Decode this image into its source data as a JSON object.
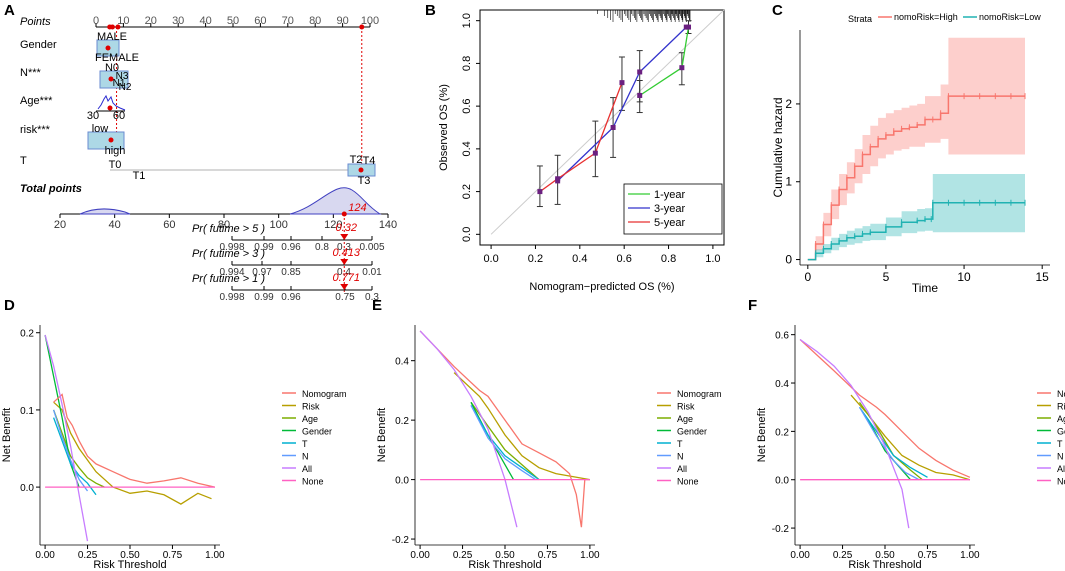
{
  "colors": {
    "red": "#f8766d",
    "green": "#7cae00",
    "teal": "#00bfc4",
    "purple": "#c77cff",
    "magenta": "#ff61c3",
    "cyan": "#00b0d0",
    "blue": "#2020c0",
    "dblue": "#3333cc",
    "lred": "#e83030",
    "lgreen": "#33cc33",
    "hazHigh": "#f8766d",
    "hazLow": "#20b2b2",
    "box": "#add8e6",
    "boxStroke": "#6a8bd0",
    "dot": "#e00000"
  },
  "chart_data": [
    {
      "panel": "A",
      "type": "nomogram",
      "rows": [
        {
          "label": "Points",
          "italic": true
        },
        {
          "label": "Gender",
          "levels": [
            "MALE",
            "FEMALE"
          ]
        },
        {
          "label": "N***",
          "levels": [
            "N0",
            "N3",
            "N1",
            "N2"
          ]
        },
        {
          "label": "Age***",
          "ticks": [
            "30",
            "60"
          ]
        },
        {
          "label": "risk***",
          "levels": [
            "low",
            "high"
          ]
        },
        {
          "label": "T",
          "levels": [
            "T0",
            "T1",
            "T2",
            "T4",
            "T3"
          ]
        },
        {
          "label": "Total points",
          "bold": true,
          "italic": true
        }
      ],
      "points_ticks": [
        0,
        10,
        20,
        30,
        40,
        50,
        60,
        70,
        80,
        90,
        100
      ],
      "total_ticks": [
        20,
        40,
        60,
        80,
        100,
        120,
        140
      ],
      "total_value": "124",
      "prob_rows": [
        {
          "label": "Pr( futime > 5 )",
          "value": "0.32",
          "ticks": [
            "0.998",
            "0.99",
            "0.96",
            "0.8",
            "0.3",
            "0.005"
          ]
        },
        {
          "label": "Pr( futime > 3 )",
          "value": "0.413",
          "ticks": [
            "0.994",
            "0.97",
            "0.85",
            "0.4",
            "0.01"
          ]
        },
        {
          "label": "Pr( futime > 1 )",
          "value": "0.771",
          "ticks": [
            "0.998",
            "0.99",
            "0.96",
            "0.75",
            "0.3"
          ]
        }
      ]
    },
    {
      "panel": "B",
      "type": "line",
      "xlabel": "Nomogram−predicted OS (%)",
      "ylabel": "Observed OS (%)",
      "xlim": [
        0,
        1
      ],
      "ylim": [
        0,
        1
      ],
      "xticks": [
        "0.0",
        "0.2",
        "0.4",
        "0.6",
        "0.8",
        "1.0"
      ],
      "yticks": [
        "0.0",
        "0.2",
        "0.4",
        "0.6",
        "0.8",
        "1.0"
      ],
      "series": [
        {
          "name": "1-year",
          "x": [
            0.67,
            0.86,
            0.89
          ],
          "y": [
            0.65,
            0.78,
            0.97
          ]
        },
        {
          "name": "3-year",
          "x": [
            0.3,
            0.55,
            0.67,
            0.88
          ],
          "y": [
            0.25,
            0.5,
            0.76,
            0.97
          ]
        },
        {
          "name": "5-year",
          "x": [
            0.22,
            0.3,
            0.47,
            0.59
          ],
          "y": [
            0.2,
            0.26,
            0.38,
            0.71
          ]
        }
      ],
      "errorbars": [
        {
          "x": 0.22,
          "y": 0.2,
          "lo": 0.13,
          "hi": 0.32
        },
        {
          "x": 0.3,
          "y": 0.26,
          "lo": 0.14,
          "hi": 0.37
        },
        {
          "x": 0.47,
          "y": 0.38,
          "lo": 0.27,
          "hi": 0.53
        },
        {
          "x": 0.55,
          "y": 0.5,
          "lo": 0.36,
          "hi": 0.64
        },
        {
          "x": 0.59,
          "y": 0.71,
          "lo": 0.58,
          "hi": 0.83
        },
        {
          "x": 0.67,
          "y": 0.76,
          "lo": 0.62,
          "hi": 0.86
        },
        {
          "x": 0.67,
          "y": 0.65,
          "lo": 0.57,
          "hi": 0.72
        },
        {
          "x": 0.86,
          "y": 0.78,
          "lo": 0.7,
          "hi": 0.85
        },
        {
          "x": 0.89,
          "y": 0.97,
          "lo": 0.94,
          "hi": 1.0
        }
      ]
    },
    {
      "panel": "C",
      "type": "line",
      "legend_title": "Strata",
      "xlabel": "Time",
      "ylabel": "Cumulative hazard",
      "xlim": [
        0,
        15
      ],
      "ylim": [
        0,
        2.8
      ],
      "xticks": [
        "0",
        "5",
        "10",
        "15"
      ],
      "yticks": [
        "0",
        "1",
        "2"
      ],
      "series": [
        {
          "name": "nomoRisk=High",
          "x": [
            0,
            0.5,
            1,
            1.5,
            2,
            2.5,
            3,
            3.5,
            4,
            4.5,
            5,
            5.5,
            6,
            6.5,
            7,
            7.5,
            8,
            8.5,
            9,
            10,
            11,
            12,
            13,
            13.9
          ],
          "y": [
            0,
            0.2,
            0.45,
            0.7,
            0.9,
            1.05,
            1.2,
            1.35,
            1.45,
            1.55,
            1.6,
            1.65,
            1.68,
            1.7,
            1.73,
            1.8,
            1.8,
            1.88,
            2.1,
            2.1,
            2.1,
            2.1,
            2.1,
            2.1
          ],
          "lo": [
            0,
            0.12,
            0.3,
            0.52,
            0.7,
            0.85,
            0.98,
            1.1,
            1.2,
            1.3,
            1.35,
            1.4,
            1.42,
            1.45,
            1.45,
            1.5,
            1.5,
            1.55,
            1.35,
            1.35,
            1.35,
            1.35,
            1.35,
            1.35
          ],
          "hi": [
            0,
            0.3,
            0.6,
            0.9,
            1.1,
            1.25,
            1.42,
            1.6,
            1.72,
            1.82,
            1.88,
            1.92,
            1.95,
            1.98,
            2.0,
            2.1,
            2.1,
            2.25,
            2.85,
            2.85,
            2.85,
            2.85,
            2.85,
            2.85
          ]
        },
        {
          "name": "nomoRisk=Low",
          "x": [
            0,
            0.5,
            1,
            1.5,
            2,
            2.5,
            3,
            3.5,
            4,
            5,
            6,
            7,
            7.5,
            7.9,
            8,
            9,
            10,
            11,
            12,
            13,
            13.9
          ],
          "y": [
            0,
            0.08,
            0.14,
            0.2,
            0.24,
            0.28,
            0.3,
            0.33,
            0.35,
            0.42,
            0.48,
            0.5,
            0.52,
            0.52,
            0.73,
            0.73,
            0.73,
            0.73,
            0.73,
            0.73,
            0.73
          ],
          "lo": [
            0,
            0.03,
            0.08,
            0.12,
            0.16,
            0.19,
            0.21,
            0.24,
            0.25,
            0.3,
            0.34,
            0.36,
            0.37,
            0.37,
            0.35,
            0.35,
            0.35,
            0.35,
            0.35,
            0.35,
            0.35
          ],
          "hi": [
            0,
            0.13,
            0.2,
            0.28,
            0.33,
            0.37,
            0.4,
            0.43,
            0.46,
            0.54,
            0.62,
            0.65,
            0.66,
            0.66,
            1.1,
            1.1,
            1.1,
            1.1,
            1.1,
            1.1,
            1.1
          ]
        }
      ]
    },
    {
      "panel": "D",
      "type": "line",
      "xlabel": "Risk Threshold",
      "ylabel": "Net Benefit",
      "xlim": [
        0,
        1
      ],
      "ylim": [
        -0.075,
        0.21
      ],
      "xticks": [
        "0.00",
        "0.25",
        "0.50",
        "0.75",
        "1.00"
      ],
      "yticks": [
        "0.0",
        "0.1",
        "0.2"
      ],
      "legend": [
        "Nomogram",
        "Risk",
        "Age",
        "Gender",
        "T",
        "N",
        "All",
        "None"
      ],
      "series": [
        {
          "name": "All",
          "x": [
            0,
            0.05,
            0.1,
            0.15,
            0.2,
            0.25
          ],
          "y": [
            0.197,
            0.157,
            0.107,
            0.053,
            -0.01,
            -0.07
          ]
        },
        {
          "name": "None",
          "x": [
            0,
            1
          ],
          "y": [
            0,
            0
          ]
        },
        {
          "name": "Nomogram",
          "x": [
            0.05,
            0.1,
            0.13,
            0.16,
            0.2,
            0.25,
            0.3,
            0.4,
            0.5,
            0.6,
            0.7,
            0.8,
            0.9,
            1.0
          ],
          "y": [
            0.11,
            0.12,
            0.09,
            0.08,
            0.06,
            0.04,
            0.03,
            0.02,
            0.01,
            0.005,
            0.008,
            0.012,
            0.005,
            0
          ]
        },
        {
          "name": "Risk",
          "x": [
            0.05,
            0.1,
            0.15,
            0.2,
            0.3,
            0.4,
            0.5,
            0.6,
            0.7,
            0.8,
            0.9,
            0.98
          ],
          "y": [
            0.11,
            0.1,
            0.07,
            0.05,
            0.02,
            0.0,
            -0.008,
            -0.005,
            -0.01,
            -0.022,
            -0.008,
            -0.015
          ]
        },
        {
          "name": "Age",
          "x": [
            0.05,
            0.1,
            0.15,
            0.2,
            0.25,
            0.3,
            0.35
          ],
          "y": [
            0.1,
            0.07,
            0.04,
            0.025,
            0.012,
            0.005,
            0
          ]
        },
        {
          "name": "Gender",
          "x": [
            0,
            0.1,
            0.15,
            0.2
          ],
          "y": [
            0.197,
            0.09,
            0.03,
            0
          ]
        },
        {
          "name": "T",
          "x": [
            0.05,
            0.1,
            0.15,
            0.2,
            0.25,
            0.3
          ],
          "y": [
            0.09,
            0.06,
            0.03,
            0.015,
            0.005,
            -0.01
          ]
        },
        {
          "name": "N",
          "x": [
            0.05,
            0.1,
            0.15,
            0.2,
            0.25
          ],
          "y": [
            0.1,
            0.065,
            0.035,
            0.01,
            -0.005
          ]
        }
      ]
    },
    {
      "panel": "E",
      "type": "line",
      "xlabel": "Risk Threshold",
      "ylabel": "Net Benefit",
      "xlim": [
        0,
        1
      ],
      "ylim": [
        -0.22,
        0.52
      ],
      "xticks": [
        "0.00",
        "0.25",
        "0.50",
        "0.75",
        "1.00"
      ],
      "yticks": [
        "-0.2",
        "0.0",
        "0.2",
        "0.4"
      ],
      "legend": [
        "Nomogram",
        "Risk",
        "Age",
        "Gender",
        "T",
        "N",
        "All",
        "None"
      ],
      "series": [
        {
          "name": "All",
          "x": [
            0,
            0.1,
            0.2,
            0.3,
            0.4,
            0.5,
            0.57
          ],
          "y": [
            0.5,
            0.44,
            0.37,
            0.28,
            0.17,
            0.0,
            -0.16
          ]
        },
        {
          "name": "None",
          "x": [
            0,
            1
          ],
          "y": [
            0,
            0
          ]
        },
        {
          "name": "Nomogram",
          "x": [
            0,
            0.2,
            0.35,
            0.4,
            0.5,
            0.6,
            0.7,
            0.8,
            0.88,
            0.92,
            0.95,
            0.97,
            1.0
          ],
          "y": [
            0.5,
            0.38,
            0.3,
            0.28,
            0.2,
            0.12,
            0.09,
            0.06,
            0.02,
            -0.05,
            -0.16,
            0.0,
            0.0
          ]
        },
        {
          "name": "Risk",
          "x": [
            0.2,
            0.35,
            0.4,
            0.5,
            0.6,
            0.7,
            0.8,
            0.9,
            1.0
          ],
          "y": [
            0.36,
            0.28,
            0.24,
            0.15,
            0.08,
            0.04,
            0.02,
            0.01,
            0.0
          ]
        },
        {
          "name": "Age",
          "x": [
            0.3,
            0.4,
            0.5,
            0.6,
            0.7
          ],
          "y": [
            0.26,
            0.18,
            0.1,
            0.05,
            0.0
          ]
        },
        {
          "name": "Gender",
          "x": [
            0.3,
            0.4,
            0.5,
            0.55
          ],
          "y": [
            0.26,
            0.15,
            0.05,
            0.0
          ]
        },
        {
          "name": "T",
          "x": [
            0.3,
            0.4,
            0.5,
            0.6,
            0.7
          ],
          "y": [
            0.25,
            0.15,
            0.08,
            0.04,
            0.0
          ]
        },
        {
          "name": "N",
          "x": [
            0.3,
            0.4,
            0.5,
            0.6,
            0.68
          ],
          "y": [
            0.25,
            0.14,
            0.07,
            0.03,
            0.0
          ]
        }
      ]
    },
    {
      "panel": "F",
      "type": "line",
      "xlabel": "Risk Threshold",
      "ylabel": "Net Benefit",
      "xlim": [
        0,
        1
      ],
      "ylim": [
        -0.27,
        0.64
      ],
      "xticks": [
        "0.00",
        "0.25",
        "0.50",
        "0.75",
        "1.00"
      ],
      "yticks": [
        "-0.2",
        "0.0",
        "0.2",
        "0.4",
        "0.6"
      ],
      "legend": [
        "Nomogram",
        "Risk",
        "Age",
        "Gender",
        "T",
        "N",
        "All",
        "None"
      ],
      "series": [
        {
          "name": "All",
          "x": [
            0,
            0.1,
            0.2,
            0.3,
            0.4,
            0.5,
            0.6,
            0.64
          ],
          "y": [
            0.58,
            0.53,
            0.47,
            0.39,
            0.28,
            0.14,
            -0.04,
            -0.2
          ]
        },
        {
          "name": "None",
          "x": [
            0,
            1
          ],
          "y": [
            0,
            0
          ]
        },
        {
          "name": "Nomogram",
          "x": [
            0,
            0.2,
            0.35,
            0.45,
            0.5,
            0.6,
            0.7,
            0.8,
            0.9,
            1.0
          ],
          "y": [
            0.58,
            0.45,
            0.35,
            0.3,
            0.27,
            0.2,
            0.13,
            0.08,
            0.04,
            0.01
          ]
        },
        {
          "name": "Risk",
          "x": [
            0.3,
            0.4,
            0.5,
            0.6,
            0.7,
            0.8,
            0.9,
            1.0
          ],
          "y": [
            0.35,
            0.27,
            0.18,
            0.1,
            0.06,
            0.03,
            0.02,
            0.0
          ]
        },
        {
          "name": "Age",
          "x": [
            0.35,
            0.45,
            0.55,
            0.65,
            0.72
          ],
          "y": [
            0.32,
            0.22,
            0.1,
            0.04,
            0.0
          ]
        },
        {
          "name": "Gender",
          "x": [
            0.4,
            0.5,
            0.6,
            0.65
          ],
          "y": [
            0.25,
            0.12,
            0.04,
            0.0
          ]
        },
        {
          "name": "T",
          "x": [
            0.35,
            0.45,
            0.55,
            0.65,
            0.75
          ],
          "y": [
            0.3,
            0.2,
            0.1,
            0.05,
            0.01
          ]
        },
        {
          "name": "N",
          "x": [
            0.35,
            0.45,
            0.55,
            0.62,
            0.7
          ],
          "y": [
            0.3,
            0.18,
            0.08,
            0.03,
            0.0
          ]
        }
      ]
    }
  ]
}
